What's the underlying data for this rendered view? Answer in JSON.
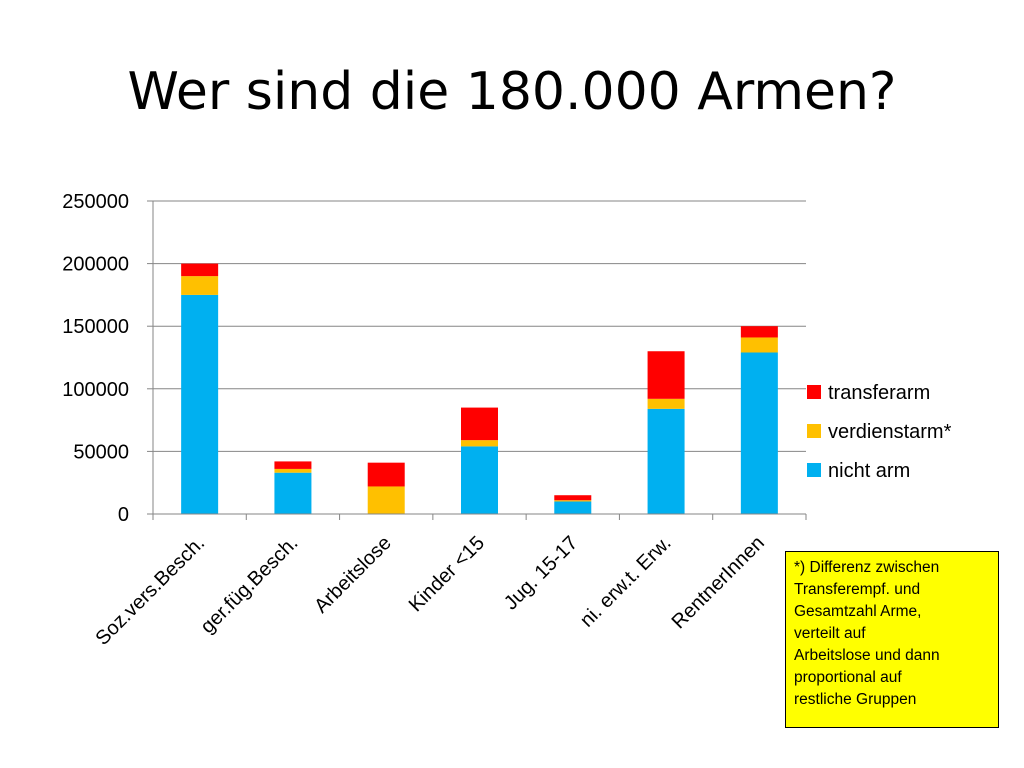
{
  "slide": {
    "title": "Wer sind die 180.000 Armen?"
  },
  "colors": {
    "nicht_arm": "#00b0f0",
    "verdienstarm": "#ffc000",
    "transferarm": "#ff0000",
    "grid": "#868686"
  },
  "chart_data": {
    "type": "bar",
    "stacked": true,
    "categories": [
      "Soz.vers.Besch.",
      "ger.füg.Besch.",
      "Arbeitslose",
      "Kinder <15",
      "Jug. 15-17",
      "ni. erw.t. Erw.",
      "RentnerInnen"
    ],
    "series": [
      {
        "name": "nicht arm",
        "color": "#00b0f0",
        "values": [
          175000,
          33000,
          0,
          54000,
          10000,
          84000,
          129000
        ]
      },
      {
        "name": "verdienstarm*",
        "color": "#ffc000",
        "values": [
          15000,
          3000,
          22000,
          5000,
          1000,
          8000,
          12000
        ]
      },
      {
        "name": "transferarm",
        "color": "#ff0000",
        "values": [
          10000,
          6000,
          19000,
          26000,
          4000,
          38000,
          9000
        ]
      }
    ],
    "legend_order": [
      "transferarm",
      "verdienstarm*",
      "nicht arm"
    ],
    "legend_position": "right",
    "ylim": [
      0,
      250000
    ],
    "yticks": [
      "0",
      "50000",
      "100000",
      "150000",
      "200000",
      "250000"
    ],
    "xlabel": "",
    "ylabel": "",
    "grid": true
  },
  "note": {
    "text": "*) Differenz zwischen\nTransferempf. und\nGesamtzahl Arme,\nverteilt auf\nArbeitslose und dann\nproportional auf\nrestliche Gruppen"
  }
}
